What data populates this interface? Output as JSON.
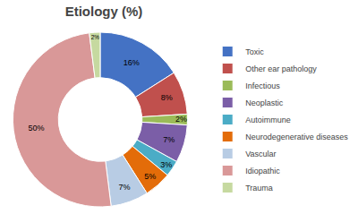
{
  "chart_data": {
    "type": "pie",
    "title": "Etiology (%)",
    "categories": [
      "Toxic",
      "Other ear pathology",
      "Infectious",
      "Neoplastic",
      "Autoimmune",
      "Neurodegenerative diseases",
      "Vascular",
      "Idiopathic",
      "Trauma"
    ],
    "values": [
      16,
      8,
      2,
      7,
      3,
      5,
      7,
      50,
      2
    ],
    "value_labels": [
      "16%",
      "8%",
      "2%",
      "7%",
      "3%",
      "5%",
      "7%",
      "50%",
      "2%"
    ],
    "colors": [
      "#4472C4",
      "#C0504D",
      "#9BBB59",
      "#7B5EA7",
      "#4BACC6",
      "#E36C09",
      "#B8CCE4",
      "#D99898",
      "#C6D9A0"
    ],
    "data_labels": true,
    "legend": "right"
  }
}
